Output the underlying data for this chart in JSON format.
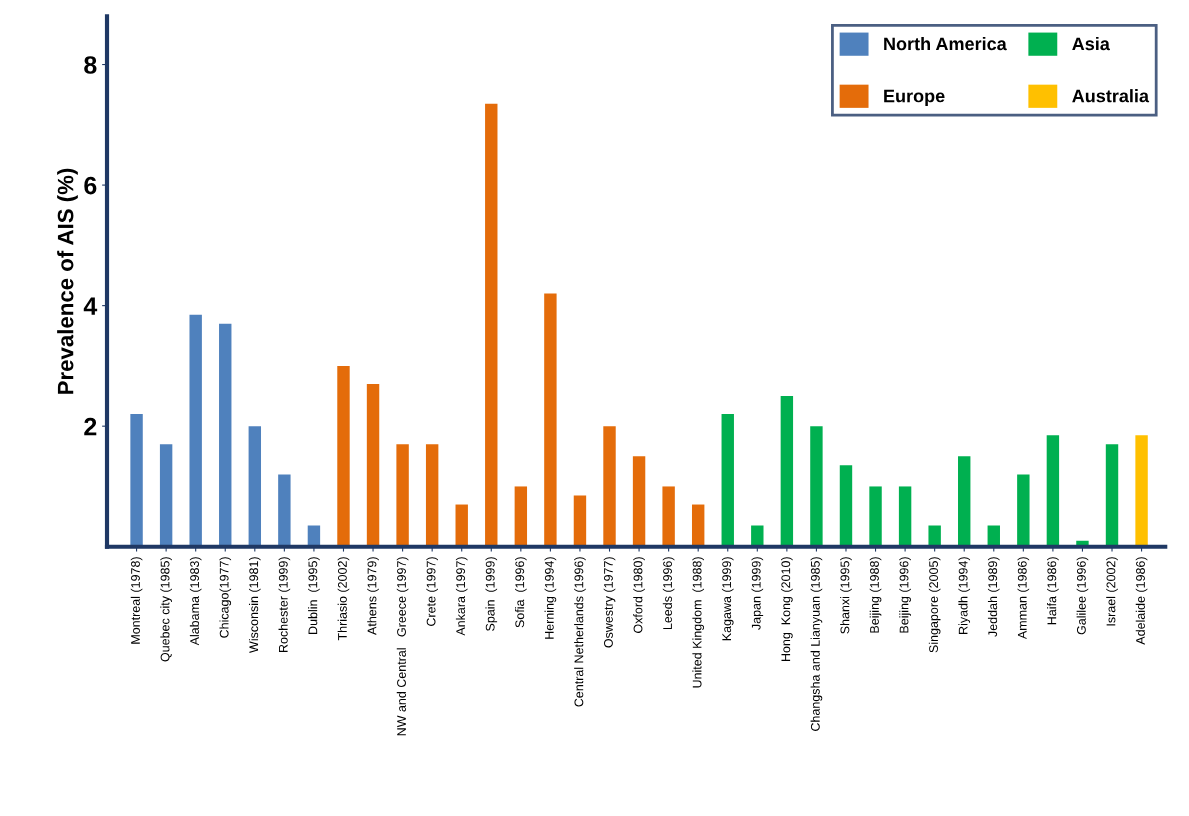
{
  "chart_data": {
    "type": "bar",
    "ylabel": "Prevalence of AIS (%)",
    "categories": [
      "Montreal (1978)",
      "Quebec city (1985)",
      "Alabama (1983)",
      "Chicago(1977)",
      "Wisconsin (1981)",
      "Rochester (1999)",
      "Dublin  (1995)",
      "Thriasio (2002)",
      "Athens (1979)",
      "NW and Central   Greece (1997)",
      "Crete (1997)",
      "Ankara (1997)",
      "Spain  (1999)",
      "Sofia  (1996)",
      "Herning (1994)",
      "Central Netherlands (1996)",
      "Oswestry (1977)",
      "Oxford (1980)",
      "Leeds (1996)",
      "United Kingdom  (1988)",
      "Kagawa (1999)",
      "Japan (1999)",
      "Hong  Kong (2010)",
      "Changsha and Lianyuan (1985)",
      "Shanxi (1995)",
      "Beijing (1988)",
      "Beijing (1996)",
      "Singapore (2005)",
      "Riyadh (1994)",
      "Jeddah (1989)",
      "Amman (1986)",
      "Haifa (1986)",
      "Galilee (1996)",
      "Israel (2002)",
      "Adelaide (1986)"
    ],
    "series": [
      {
        "name": "North America",
        "color": "#4f81bd",
        "values": [
          2.2,
          1.7,
          3.85,
          3.7,
          2.0,
          1.2,
          0.35,
          null,
          null,
          null,
          null,
          null,
          null,
          null,
          null,
          null,
          null,
          null,
          null,
          null,
          null,
          null,
          null,
          null,
          null,
          null,
          null,
          null,
          null,
          null,
          null,
          null,
          null,
          null,
          null
        ]
      },
      {
        "name": "Europe",
        "color": "#e46c0a",
        "values": [
          null,
          null,
          null,
          null,
          null,
          null,
          null,
          3.0,
          2.7,
          1.7,
          1.7,
          0.7,
          7.35,
          1.0,
          4.2,
          0.85,
          2.0,
          1.5,
          1.0,
          0.7,
          null,
          null,
          null,
          null,
          null,
          null,
          null,
          null,
          null,
          null,
          null,
          null,
          null,
          null,
          null
        ]
      },
      {
        "name": "Asia",
        "color": "#00b050",
        "values": [
          null,
          null,
          null,
          null,
          null,
          null,
          null,
          null,
          null,
          null,
          null,
          null,
          null,
          null,
          null,
          null,
          null,
          null,
          null,
          null,
          2.2,
          0.35,
          2.5,
          2.0,
          1.35,
          1.0,
          1.0,
          0.35,
          1.5,
          0.35,
          1.2,
          1.85,
          0.1,
          1.7,
          null
        ]
      },
      {
        "name": "Australia",
        "color": "#ffc000",
        "values": [
          null,
          null,
          null,
          null,
          null,
          null,
          null,
          null,
          null,
          null,
          null,
          null,
          null,
          null,
          null,
          null,
          null,
          null,
          null,
          null,
          null,
          null,
          null,
          null,
          null,
          null,
          null,
          null,
          null,
          null,
          null,
          null,
          null,
          null,
          1.85
        ]
      }
    ],
    "ylim": [
      0,
      8.8
    ],
    "yticks": [
      2,
      4,
      6,
      8
    ],
    "grid": false,
    "legend": "top right"
  }
}
